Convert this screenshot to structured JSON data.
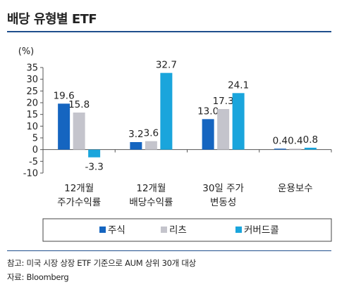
{
  "title": "배당 유형별 ETF",
  "notes": {
    "line1": "참고: 미국 시장 상장 ETF 기준으로 AUM 상위 30개 대상",
    "line2": "자료: Bloomberg"
  },
  "chart_data": {
    "type": "bar",
    "unit_label": "(%)",
    "ylim": [
      -10,
      35
    ],
    "yticks": [
      -10,
      -5,
      0,
      5,
      10,
      15,
      20,
      25,
      30,
      35
    ],
    "categories": [
      [
        "12개월",
        "주가수익률"
      ],
      [
        "12개월",
        "배당수익률"
      ],
      [
        "30일 주가",
        "변동성"
      ],
      [
        "운용보수"
      ]
    ],
    "series": [
      {
        "name": "주식",
        "color": "#1565c0",
        "values": [
          19.6,
          3.2,
          13.0,
          0.4
        ]
      },
      {
        "name": "리츠",
        "color": "#c4c4cc",
        "values": [
          15.8,
          3.6,
          17.3,
          0.4
        ]
      },
      {
        "name": "커버드콜",
        "color": "#1aa5dc",
        "values": [
          -3.3,
          32.7,
          24.1,
          0.8
        ]
      }
    ],
    "data_labels": [
      [
        "19.6",
        "3.2",
        "13.0",
        "0.4"
      ],
      [
        "15.8",
        "3.6",
        "17.3",
        "0.4"
      ],
      [
        "-3.3",
        "32.7",
        "24.1",
        "0.8"
      ]
    ],
    "legend_position": "bottom",
    "grid": false
  }
}
